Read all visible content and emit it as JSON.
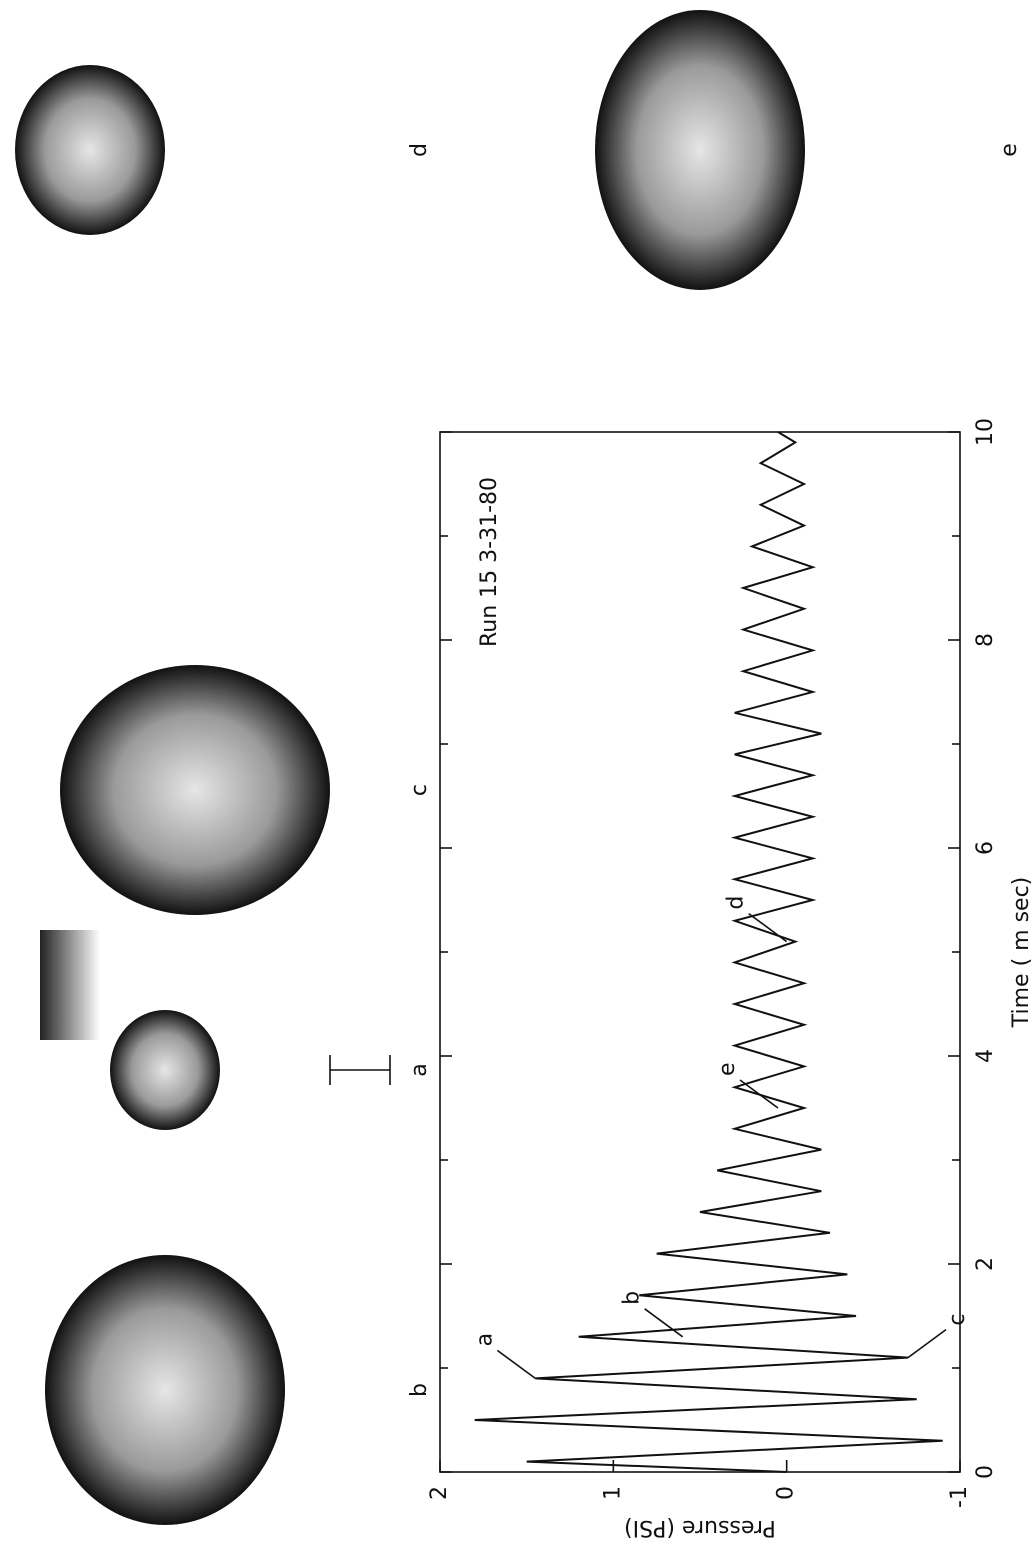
{
  "panel_labels": [
    "a",
    "b",
    "c",
    "d",
    "e"
  ],
  "chart_data": {
    "type": "line",
    "annotation": "Run 15  3-31-80",
    "x_label": "Time ( m sec)",
    "y_label": "Pressure (PSI)",
    "color": "#111111",
    "x": [
      0,
      0.1,
      0.3,
      0.5,
      0.7,
      0.9,
      1.1,
      1.3,
      1.5,
      1.7,
      1.9,
      2.1,
      2.3,
      2.5,
      2.7,
      2.9,
      3.1,
      3.3,
      3.5,
      3.7,
      3.9,
      4.1,
      4.3,
      4.5,
      4.7,
      4.9,
      5.1,
      5.3,
      5.5,
      5.7,
      5.9,
      6.1,
      6.3,
      6.5,
      6.7,
      6.9,
      7.1,
      7.3,
      7.5,
      7.7,
      7.9,
      8.1,
      8.3,
      8.5,
      8.7,
      8.9,
      9.1,
      9.3,
      9.5,
      9.7,
      9.9,
      10
    ],
    "values": [
      0,
      1.5,
      -0.9,
      1.8,
      -0.75,
      1.45,
      -0.7,
      1.2,
      -0.4,
      0.85,
      -0.35,
      0.75,
      -0.25,
      0.5,
      -0.2,
      0.4,
      -0.2,
      0.3,
      -0.1,
      0.3,
      -0.1,
      0.3,
      -0.1,
      0.3,
      -0.1,
      0.3,
      -0.05,
      0.3,
      -0.15,
      0.3,
      -0.15,
      0.3,
      -0.15,
      0.3,
      -0.15,
      0.3,
      -0.2,
      0.3,
      -0.15,
      0.25,
      -0.15,
      0.25,
      -0.1,
      0.25,
      -0.15,
      0.2,
      -0.1,
      0.15,
      -0.1,
      0.15,
      -0.05,
      0.05
    ],
    "xlim": [
      0,
      10
    ],
    "xticks": [
      0,
      2,
      4,
      6,
      8,
      10
    ],
    "xminorticks": [
      1,
      3,
      5,
      7,
      9
    ],
    "ylim": [
      -1,
      2
    ],
    "yticks": [
      -1,
      0,
      1,
      2
    ],
    "markers": [
      {
        "text": "a",
        "x": 0.9,
        "y": 1.45
      },
      {
        "text": "b",
        "x": 1.3,
        "y": 0.6
      },
      {
        "text": "c",
        "x": 1.1,
        "y": -0.7
      },
      {
        "text": "e",
        "x": 3.5,
        "y": 0.05
      },
      {
        "text": "d",
        "x": 5.1,
        "y": 0
      }
    ]
  }
}
